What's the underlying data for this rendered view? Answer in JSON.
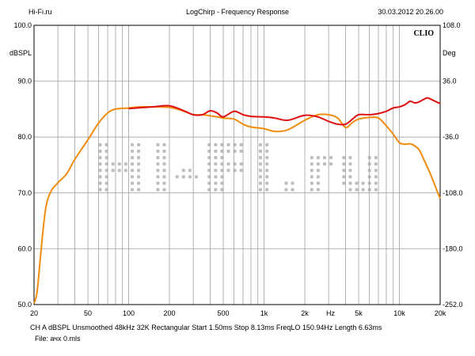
{
  "header": {
    "left": "Hi-Fi.ru",
    "center": "LogChirp - Frequency Response",
    "right": "30.03.2012 20.26.00"
  },
  "brand": "CLIO",
  "watermark": "Hi-Fi.ru",
  "footer": {
    "line1": "CH A   dBSPL   Unsmoothed   48kHz   32K   Rectangular   Start 1.50ms     Stop 8.13ms     FreqLO 150.94Hz    Length 6.63ms",
    "line2": "File: ачх 0.mls"
  },
  "colors": {
    "background": "#ffffff",
    "grid": "#a0a0a0",
    "series_red": "#dd1111",
    "series_orange": "#f08c10",
    "watermark": "#bdbdbd"
  },
  "chart_data": {
    "type": "line",
    "xscale": "log",
    "xlim": [
      20,
      20000
    ],
    "ylim": [
      50,
      100
    ],
    "y2lim": [
      -252,
      108
    ],
    "ylabel": "dBSPL",
    "y2label": "Deg",
    "xlabel_center": "Hz",
    "x_ticks": [
      20,
      50,
      100,
      200,
      500,
      1000,
      2000,
      5000,
      10000,
      20000
    ],
    "x_tick_labels": [
      "20",
      "50",
      "100",
      "200",
      "500",
      "1k",
      "2k",
      "5k",
      "10k",
      "20k"
    ],
    "y_ticks": [
      100,
      90,
      80,
      70,
      60,
      50
    ],
    "y_tick_labels": [
      "100.0",
      "90.0",
      "80.0",
      "70.0",
      "60.0",
      "50.0"
    ],
    "y2_ticks": [
      108,
      36,
      -36,
      -108,
      -180,
      -252
    ],
    "y2_tick_labels": [
      "108.0",
      "36.0",
      "-36.0",
      "-108.0",
      "-180.0",
      "-252.0"
    ],
    "grid": true,
    "series": [
      {
        "color": "#f08c10",
        "points": [
          [
            20,
            50.2
          ],
          [
            21,
            52
          ],
          [
            22,
            57
          ],
          [
            23,
            62
          ],
          [
            24,
            66
          ],
          [
            25,
            68.5
          ],
          [
            27,
            70.5
          ],
          [
            30,
            71.8
          ],
          [
            35,
            73.5
          ],
          [
            40,
            76
          ],
          [
            50,
            79.5
          ],
          [
            60,
            82.5
          ],
          [
            70,
            84.3
          ],
          [
            80,
            85
          ],
          [
            100,
            85.2
          ],
          [
            120,
            85.4
          ],
          [
            150,
            85.4
          ],
          [
            200,
            85.3
          ],
          [
            250,
            84.7
          ],
          [
            300,
            84
          ],
          [
            350,
            84
          ],
          [
            400,
            83.8
          ],
          [
            450,
            83.6
          ],
          [
            500,
            83.4
          ],
          [
            600,
            83.2
          ],
          [
            700,
            82.3
          ],
          [
            800,
            81.8
          ],
          [
            1000,
            81.5
          ],
          [
            1200,
            81
          ],
          [
            1500,
            81.3
          ],
          [
            2000,
            83
          ],
          [
            2500,
            84
          ],
          [
            3000,
            84
          ],
          [
            3500,
            83.4
          ],
          [
            4000,
            81.7
          ],
          [
            4500,
            82.6
          ],
          [
            5000,
            83.2
          ],
          [
            6000,
            83.5
          ],
          [
            7000,
            83.4
          ],
          [
            8000,
            82
          ],
          [
            9000,
            80.5
          ],
          [
            10000,
            79
          ],
          [
            11000,
            78.7
          ],
          [
            12000,
            78.8
          ],
          [
            13000,
            78.4
          ],
          [
            14000,
            77.7
          ],
          [
            15000,
            76.2
          ],
          [
            17000,
            73.3
          ],
          [
            19000,
            70.3
          ],
          [
            20000,
            69
          ]
        ]
      },
      {
        "color": "#dd1111",
        "points": [
          [
            100,
            85.1
          ],
          [
            150,
            85.4
          ],
          [
            200,
            85.6
          ],
          [
            250,
            84.8
          ],
          [
            300,
            84
          ],
          [
            350,
            84
          ],
          [
            400,
            84.7
          ],
          [
            450,
            84.3
          ],
          [
            500,
            83.6
          ],
          [
            600,
            84.6
          ],
          [
            700,
            84
          ],
          [
            800,
            83.7
          ],
          [
            1000,
            83.6
          ],
          [
            1200,
            83.4
          ],
          [
            1500,
            83
          ],
          [
            2000,
            83.9
          ],
          [
            2500,
            83.6
          ],
          [
            3000,
            82.8
          ],
          [
            3500,
            82.3
          ],
          [
            4000,
            82.3
          ],
          [
            4500,
            83.2
          ],
          [
            5000,
            84
          ],
          [
            6000,
            84
          ],
          [
            7000,
            84.2
          ],
          [
            8000,
            84.6
          ],
          [
            9000,
            85.2
          ],
          [
            10000,
            85.4
          ],
          [
            11000,
            85.8
          ],
          [
            12000,
            86.4
          ],
          [
            13000,
            86.1
          ],
          [
            14000,
            86.3
          ],
          [
            15000,
            86.7
          ],
          [
            16000,
            87
          ],
          [
            17000,
            86.8
          ],
          [
            18000,
            86.5
          ],
          [
            20000,
            86
          ]
        ]
      }
    ]
  }
}
